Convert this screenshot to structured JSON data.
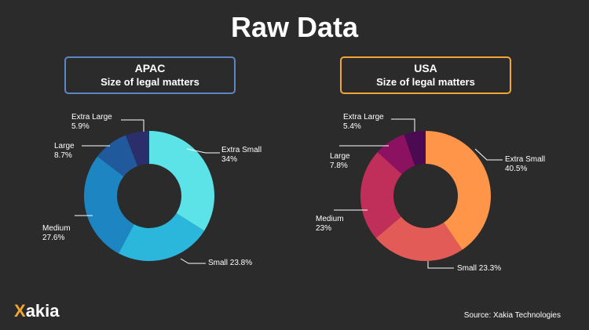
{
  "header": {
    "title": "Raw Data"
  },
  "brand": {
    "logo_mark": "X",
    "logo_text": "akia",
    "accent": "#f2a533"
  },
  "footer": {
    "source": "Source: Xakia Technologies"
  },
  "panels": [
    {
      "region": "APAC",
      "subtitle": "Size of legal matters",
      "border_color": "#5f86c4"
    },
    {
      "region": "USA",
      "subtitle": "Size of legal matters",
      "border_color": "#f2a533"
    }
  ],
  "chart_data": [
    {
      "type": "pie",
      "title": "APAC",
      "subtitle": "Size of legal matters",
      "donut": true,
      "categories": [
        "Extra Small",
        "Small",
        "Medium",
        "Large",
        "Extra Large"
      ],
      "values": [
        34,
        23.8,
        27.6,
        8.7,
        5.9
      ],
      "value_labels": [
        "34%",
        "23.8%",
        "27.6%",
        "8.7%",
        "5.9%"
      ],
      "colors": [
        "#5be3e8",
        "#2bb7dc",
        "#1d86c2",
        "#215a9c",
        "#2a2e6b"
      ]
    },
    {
      "type": "pie",
      "title": "USA",
      "subtitle": "Size of legal matters",
      "donut": true,
      "categories": [
        "Extra Small",
        "Small",
        "Medium",
        "Large",
        "Extra Large"
      ],
      "values": [
        40.5,
        23.3,
        23,
        7.8,
        5.4
      ],
      "value_labels": [
        "40.5%",
        "23.3%",
        "23%",
        "7.8%",
        "5.4%"
      ],
      "colors": [
        "#ff9548",
        "#e35b57",
        "#c02e5a",
        "#8c1160",
        "#4c0a52"
      ]
    }
  ]
}
